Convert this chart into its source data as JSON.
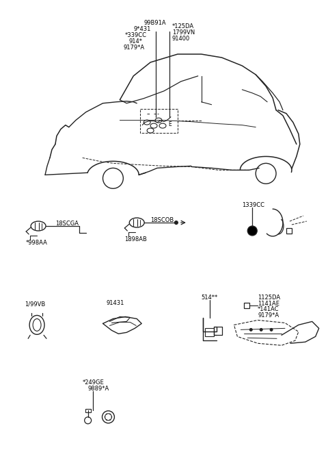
{
  "bg_color": "#ffffff",
  "lc": "#222222",
  "tc": "#000000",
  "fs": 6.0,
  "car_label_left": [
    "99B91A",
    "9*431",
    "*339CC",
    "914*",
    "9179*A"
  ],
  "car_label_right": [
    "*125DA",
    "1799VN",
    "91400"
  ],
  "r2_labels": [
    "*998AA",
    "18SCGA",
    "1898AB",
    "18SCOB",
    "1339CC"
  ],
  "r3_labels": [
    "1/99VB",
    "91431",
    "514**",
    "1125DA",
    "1141AE",
    "*141AC",
    "9179*A"
  ],
  "r4_labels": [
    "*249GE",
    "9889*A"
  ]
}
